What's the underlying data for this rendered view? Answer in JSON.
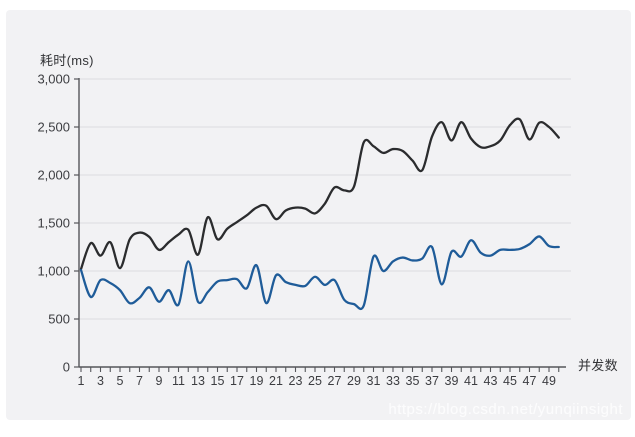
{
  "page": {
    "background": "#ffffff",
    "panel_background": "#f2f2f4"
  },
  "colors": {
    "grid": "#dcdcdf",
    "axis": "#55565a",
    "tick_label": "#3c3d41",
    "dark_series": "#2b2c2e",
    "blue_series": "#1f5c99"
  },
  "watermark": {
    "text": "https://blog.csdn.net/yunqiinsight"
  },
  "chart_data": {
    "type": "line",
    "title": "",
    "ylabel": "耗时(ms)",
    "xlabel": "并发数",
    "grid": true,
    "legend": false,
    "ylim": [
      0,
      3000
    ],
    "xlim": [
      1,
      50
    ],
    "yticks": [
      0,
      500,
      1000,
      1500,
      2000,
      2500,
      3000
    ],
    "ytick_labels": [
      "0",
      "500",
      "1,000",
      "1,500",
      "2,000",
      "2,500",
      "3,000"
    ],
    "xticks_labeled": [
      1,
      3,
      5,
      7,
      9,
      11,
      13,
      15,
      17,
      19,
      21,
      23,
      25,
      27,
      29,
      31,
      33,
      35,
      37,
      39,
      41,
      43,
      45,
      47,
      49
    ],
    "xtick_labels": [
      "1",
      "3",
      "5",
      "7",
      "9",
      "11",
      "13",
      "15",
      "17",
      "19",
      "21",
      "23",
      "25",
      "27",
      "29",
      "31",
      "33",
      "35",
      "37",
      "39",
      "41",
      "43",
      "45",
      "47",
      "49"
    ],
    "x": [
      1,
      2,
      3,
      4,
      5,
      6,
      7,
      8,
      9,
      10,
      11,
      12,
      13,
      14,
      15,
      16,
      17,
      18,
      19,
      20,
      21,
      22,
      23,
      24,
      25,
      26,
      27,
      28,
      29,
      30,
      31,
      32,
      33,
      34,
      35,
      36,
      37,
      38,
      39,
      40,
      41,
      42,
      43,
      44,
      45,
      46,
      47,
      48,
      49,
      50
    ],
    "series": [
      {
        "name": "dark",
        "color": "#2b2c2e",
        "values": [
          1020,
          1290,
          1160,
          1300,
          1030,
          1330,
          1400,
          1355,
          1220,
          1300,
          1380,
          1430,
          1170,
          1560,
          1330,
          1440,
          1510,
          1580,
          1660,
          1680,
          1540,
          1630,
          1660,
          1650,
          1600,
          1700,
          1870,
          1840,
          1880,
          2340,
          2300,
          2230,
          2270,
          2250,
          2150,
          2050,
          2400,
          2550,
          2360,
          2550,
          2380,
          2290,
          2300,
          2360,
          2520,
          2580,
          2370,
          2545,
          2500,
          2390
        ]
      },
      {
        "name": "blue",
        "color": "#1f5c99",
        "values": [
          1010,
          730,
          905,
          875,
          800,
          665,
          720,
          830,
          680,
          800,
          650,
          1100,
          680,
          780,
          890,
          905,
          915,
          820,
          1060,
          665,
          955,
          885,
          855,
          845,
          940,
          855,
          905,
          700,
          655,
          640,
          1150,
          1000,
          1100,
          1140,
          1110,
          1130,
          1250,
          860,
          1200,
          1150,
          1320,
          1190,
          1160,
          1220,
          1220,
          1230,
          1280,
          1360,
          1260,
          1250
        ]
      }
    ]
  }
}
